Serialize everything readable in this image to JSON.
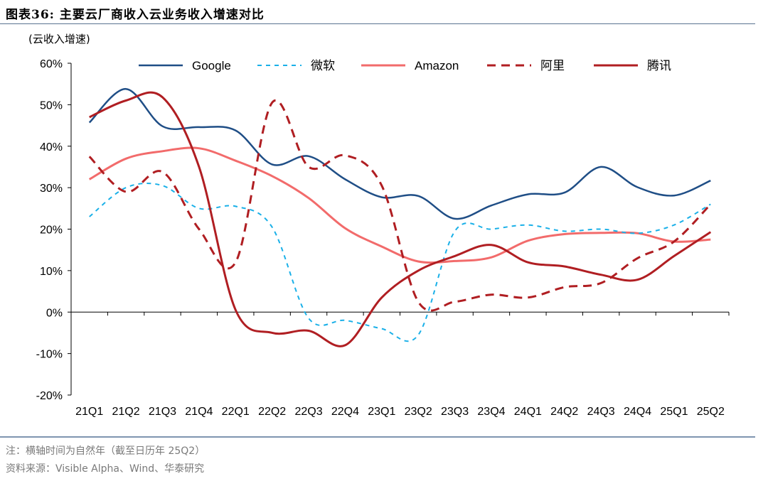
{
  "title": "图表36:   主要云厂商收入云业务收入增速对比",
  "note": "注：横轴时间为自然年（截至日历年 25Q2）",
  "source": "资料来源：Visible Alpha、Wind、华泰研究",
  "chart_data": {
    "type": "line",
    "ylabel": "(云收入增速)",
    "ylim": [
      -20,
      60
    ],
    "yticks": [
      "60%",
      "50%",
      "40%",
      "30%",
      "20%",
      "10%",
      "0%",
      "-10%",
      "-20%"
    ],
    "categories": [
      "21Q1",
      "21Q2",
      "21Q3",
      "21Q4",
      "22Q1",
      "22Q2",
      "22Q3",
      "22Q4",
      "23Q1",
      "23Q2",
      "23Q3",
      "23Q4",
      "24Q1",
      "24Q2",
      "24Q3",
      "24Q4",
      "25Q1",
      "25Q2"
    ],
    "legend_position": "top",
    "series": [
      {
        "name": "Google",
        "color": "#1f4e86",
        "dash": "solid",
        "width": 2.5,
        "values": [
          45.7,
          53.8,
          44.8,
          44.6,
          43.8,
          35.6,
          37.6,
          32.0,
          27.7,
          28.0,
          22.5,
          25.7,
          28.4,
          28.8,
          35.0,
          30.1,
          28.1,
          31.7
        ]
      },
      {
        "name": "微软",
        "color": "#1ab0e8",
        "dash": "6,6",
        "width": 2,
        "values": [
          23.0,
          30.0,
          30.5,
          25.0,
          25.5,
          20.5,
          -1.5,
          -2.0,
          -4.0,
          -5.5,
          19.5,
          20.0,
          21.0,
          19.5,
          20.0,
          19.0,
          21.0,
          26.0
        ]
      },
      {
        "name": "Amazon",
        "color": "#f26b6b",
        "dash": "solid",
        "width": 3,
        "values": [
          32.0,
          37.0,
          38.8,
          39.5,
          36.5,
          32.8,
          27.5,
          20.2,
          15.8,
          12.2,
          12.3,
          13.2,
          17.2,
          18.8,
          19.1,
          19.0,
          17.0,
          17.5
        ]
      },
      {
        "name": "阿里",
        "color": "#b01e22",
        "dash": "12,8",
        "width": 3,
        "values": [
          37.5,
          29.0,
          33.8,
          20.0,
          12.0,
          50.5,
          35.0,
          37.8,
          30.5,
          2.5,
          2.5,
          4.2,
          3.5,
          6.0,
          7.0,
          13.0,
          17.0,
          26.0
        ]
      },
      {
        "name": "腾讯",
        "color": "#b01e22",
        "dash": "solid",
        "width": 3,
        "values": [
          47.0,
          51.0,
          51.8,
          35.0,
          0.5,
          -5.0,
          -4.5,
          -8.0,
          3.5,
          10.0,
          13.5,
          16.2,
          12.0,
          11.0,
          9.0,
          7.8,
          13.5,
          19.3
        ]
      }
    ]
  }
}
